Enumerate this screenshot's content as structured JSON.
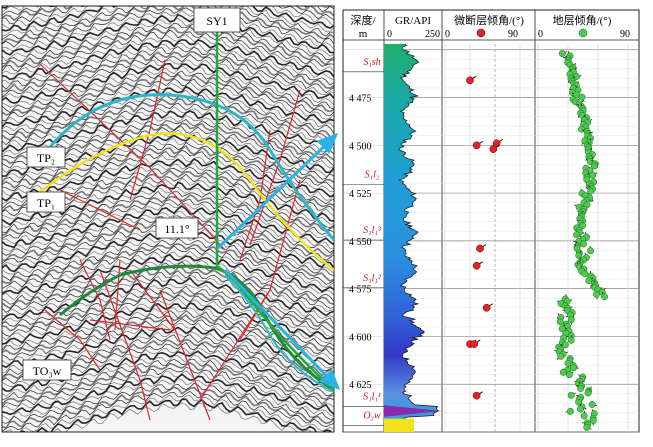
{
  "seismic": {
    "well_label": "SY1",
    "horizons": [
      {
        "label": "TP₂",
        "color": "#2ab7c9"
      },
      {
        "label": "TP₁",
        "color": "#f2e21b"
      },
      {
        "label": "TO₃w",
        "color": "#1f8a3a"
      }
    ],
    "angle_label": "11.1°"
  },
  "log": {
    "depth_header_1": "深度/",
    "depth_header_2": "m",
    "gr_header": "GR/API",
    "gr_min": "0",
    "gr_max": "250",
    "fault_header": "微断层倾角/(°)",
    "fault_min": "0",
    "fault_max": "90",
    "strata_header": "地层倾角/(°)",
    "strata_min": "0",
    "strata_max": "90",
    "depths": [
      "4 475",
      "4 500",
      "4 525",
      "4 550",
      "4 575",
      "4 600",
      "4 625"
    ],
    "formations": [
      "S₁sh",
      "S₁l₂",
      "S₁l₁³",
      "S₁l₁²",
      "S₁l₁¹",
      "O₃w"
    ],
    "fault_dips": [
      {
        "depth": 4466,
        "dip": 30
      },
      {
        "depth": 4500,
        "dip": 38
      },
      {
        "depth": 4499,
        "dip": 62
      },
      {
        "depth": 4502,
        "dip": 58
      },
      {
        "depth": 4554,
        "dip": 42
      },
      {
        "depth": 4563,
        "dip": 38
      },
      {
        "depth": 4585,
        "dip": 50
      },
      {
        "depth": 4604,
        "dip": 30
      },
      {
        "depth": 4604,
        "dip": 35
      },
      {
        "depth": 4631,
        "dip": 38
      }
    ]
  }
}
